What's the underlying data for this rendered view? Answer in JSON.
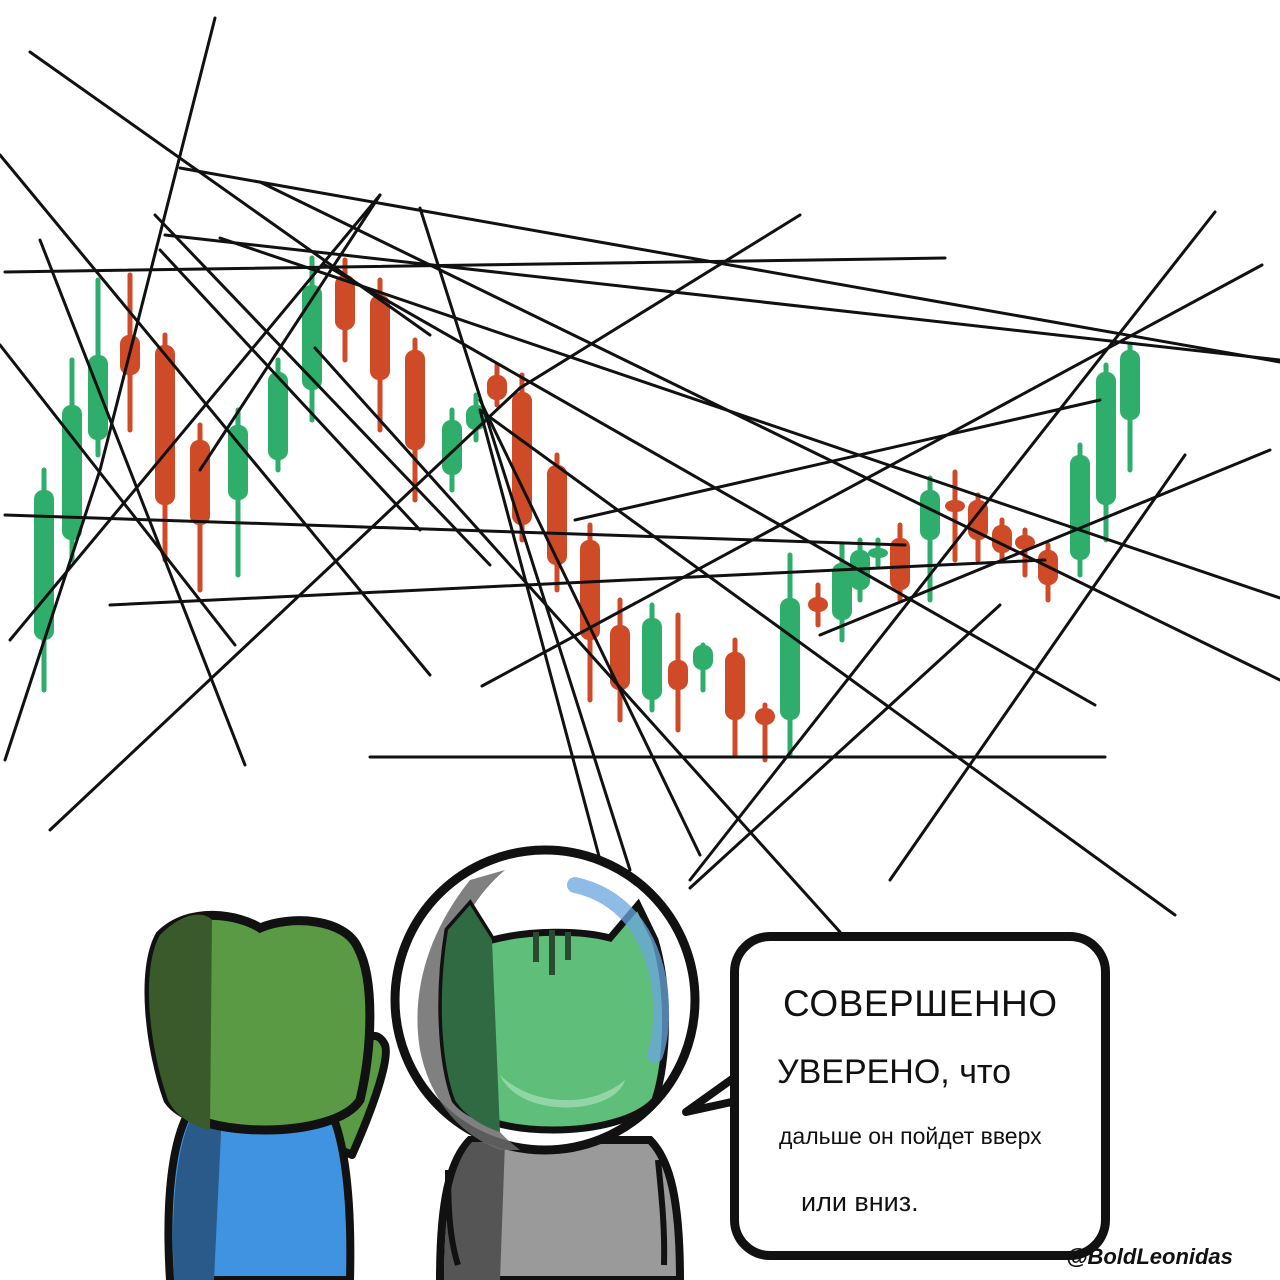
{
  "colors": {
    "candle_up": "#2fae6b",
    "candle_down": "#cf4a27",
    "ink": "#111111",
    "frog_dark": "#3a5a2c",
    "frog_light": "#5a9a44",
    "shirt_blue": "#3f93e0",
    "shirt_dark": "#2a5a8a",
    "helmet_glass": "#ffffff",
    "cat_green": "#5fbf7a",
    "suit_gray": "#9a9a9a",
    "visor_blue": "#6aa6de"
  },
  "bubble": {
    "line1": "СОВЕРШЕННО",
    "line2": "УВЕРЕНО, что",
    "line3": "дальше он пойдет вверх",
    "line4": "или вниз."
  },
  "signature": "@BoldLeonidas",
  "characters": [
    "frog-character",
    "astronaut-cat-character"
  ]
}
